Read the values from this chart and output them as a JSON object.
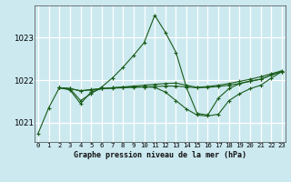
{
  "title": "Graphe pression niveau de la mer (hPa)",
  "bg_color": "#cce9f0",
  "grid_color": "#ffffff",
  "line_color": "#1a5c1a",
  "x_labels": [
    "0",
    "1",
    "2",
    "3",
    "4",
    "5",
    "6",
    "7",
    "8",
    "9",
    "10",
    "11",
    "12",
    "13",
    "14",
    "15",
    "16",
    "17",
    "18",
    "19",
    "20",
    "21",
    "22",
    "23"
  ],
  "yticks": [
    1021,
    1022,
    1023
  ],
  "ylim": [
    1020.55,
    1023.75
  ],
  "xlim": [
    -0.3,
    23.3
  ],
  "s1_x": [
    0,
    1,
    2,
    3,
    4,
    5,
    6,
    7,
    8,
    9,
    10,
    11,
    12,
    13,
    14,
    15,
    16,
    17,
    18,
    19,
    20,
    21,
    22,
    23
  ],
  "s1_y": [
    1020.75,
    1021.35,
    1021.82,
    1021.8,
    1021.52,
    1021.68,
    1021.84,
    1022.05,
    1022.3,
    1022.58,
    1022.88,
    1023.52,
    1023.12,
    1022.65,
    1021.82,
    1021.22,
    1021.18,
    1021.58,
    1021.8,
    1021.92,
    1021.98,
    1022.02,
    1022.12,
    1022.2
  ],
  "s2_x": [
    2,
    3,
    4,
    5,
    6,
    7,
    8,
    9,
    10,
    11,
    12,
    13,
    14,
    15,
    16,
    17,
    18,
    19,
    20,
    21,
    22,
    23
  ],
  "s2_y": [
    1021.82,
    1021.8,
    1021.75,
    1021.78,
    1021.8,
    1021.82,
    1021.84,
    1021.86,
    1021.88,
    1021.9,
    1021.92,
    1021.93,
    1021.88,
    1021.83,
    1021.85,
    1021.88,
    1021.92,
    1021.97,
    1022.02,
    1022.08,
    1022.15,
    1022.22
  ],
  "s3_x": [
    2,
    3,
    4,
    5,
    6,
    7,
    8,
    9,
    10,
    11,
    12,
    13,
    14,
    15,
    16,
    17,
    18,
    19,
    20,
    21,
    22,
    23
  ],
  "s3_y": [
    1021.82,
    1021.8,
    1021.75,
    1021.77,
    1021.8,
    1021.81,
    1021.82,
    1021.83,
    1021.84,
    1021.85,
    1021.86,
    1021.86,
    1021.84,
    1021.82,
    1021.83,
    1021.85,
    1021.88,
    1021.92,
    1021.97,
    1022.02,
    1022.12,
    1022.2
  ],
  "s4_x": [
    2,
    3,
    4,
    5,
    6,
    7,
    8,
    9,
    10,
    11,
    12,
    13,
    14,
    15,
    16,
    17,
    18,
    19,
    20,
    21,
    22,
    23
  ],
  "s4_y": [
    1021.82,
    1021.77,
    1021.45,
    1021.72,
    1021.8,
    1021.82,
    1021.83,
    1021.84,
    1021.84,
    1021.83,
    1021.72,
    1021.52,
    1021.32,
    1021.18,
    1021.16,
    1021.2,
    1021.52,
    1021.68,
    1021.8,
    1021.88,
    1022.05,
    1022.2
  ]
}
